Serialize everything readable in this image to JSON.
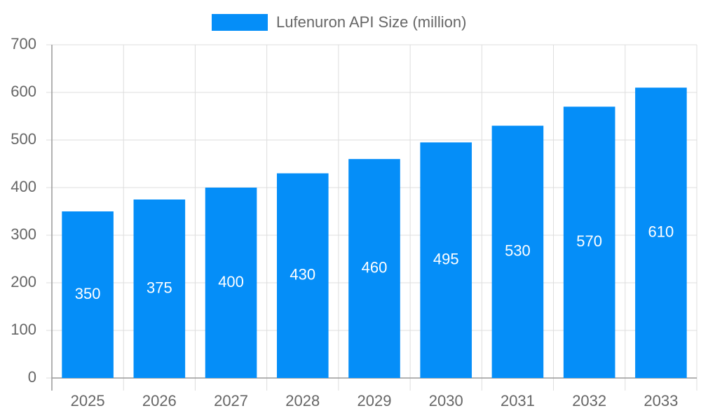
{
  "chart_data": {
    "type": "bar",
    "categories": [
      "2025",
      "2026",
      "2027",
      "2028",
      "2029",
      "2030",
      "2031",
      "2032",
      "2033"
    ],
    "series": [
      {
        "name": "Lufenuron API Size (million)",
        "color": "#058ef8",
        "values": [
          350,
          375,
          400,
          430,
          460,
          495,
          530,
          570,
          610
        ]
      }
    ],
    "ylim": [
      0,
      700
    ],
    "yticks": [
      0,
      100,
      200,
      300,
      400,
      500,
      600,
      700
    ],
    "grid": true,
    "legend": "top"
  }
}
